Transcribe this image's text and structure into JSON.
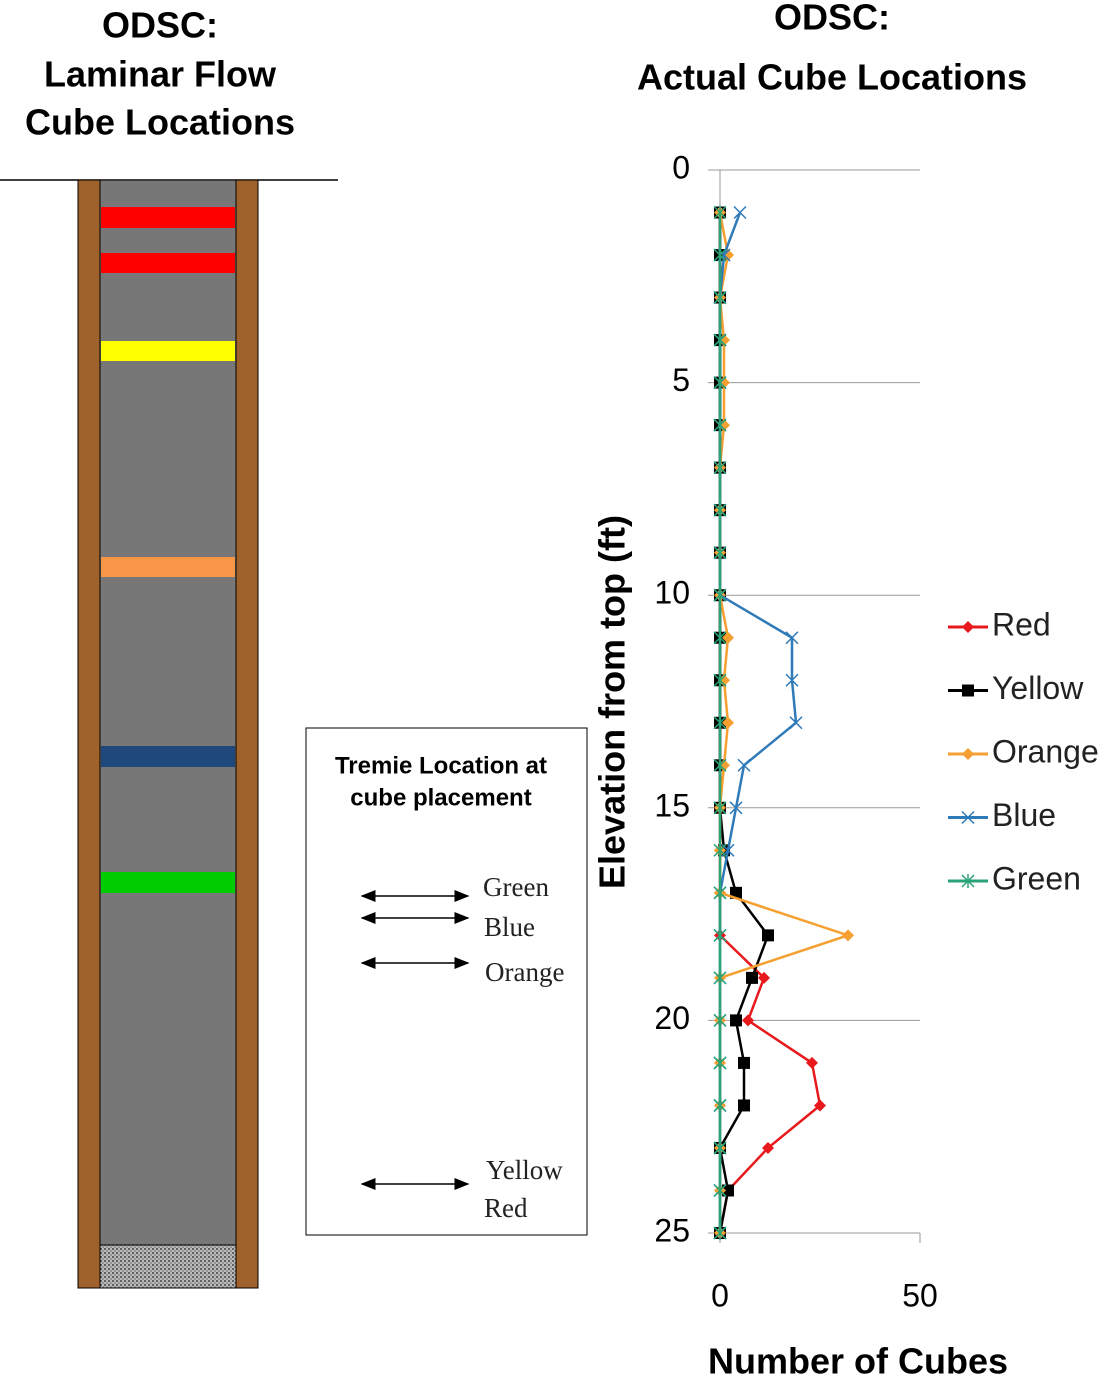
{
  "diagram": {
    "title": [
      "ODSC:",
      "Laminar Flow",
      "Cube Locations"
    ],
    "box_title": [
      "Tremie Location at",
      "cube placement"
    ],
    "labels": [
      "Green",
      "Blue",
      "Orange",
      "Yellow",
      "Red"
    ]
  },
  "chart_data": {
    "type": "line",
    "orientation": "vertical",
    "title": [
      "ODSC:",
      "Actual Cube Locations"
    ],
    "x_label": "Number of Cubes",
    "y_label": "Elevation from top (ft)",
    "y": [
      1,
      2,
      3,
      4,
      5,
      6,
      7,
      8,
      9,
      10,
      11,
      12,
      13,
      14,
      15,
      16,
      17,
      18,
      19,
      20,
      21,
      22,
      23,
      24,
      25
    ],
    "series": [
      {
        "name": "Red",
        "color": "#e8191c",
        "marker": "diamond",
        "values": [
          0,
          0,
          0,
          0,
          0,
          0,
          0,
          0,
          0,
          0,
          0,
          0,
          0,
          0,
          0,
          0,
          0,
          0,
          11,
          7,
          23,
          25,
          12,
          2,
          0
        ]
      },
      {
        "name": "Yellow",
        "color": "#000000",
        "marker": "square",
        "values": [
          0,
          0,
          0,
          0,
          0,
          0,
          0,
          0,
          0,
          0,
          0,
          0,
          0,
          0,
          0,
          1,
          4,
          12,
          8,
          4,
          6,
          6,
          0,
          2,
          0
        ]
      },
      {
        "name": "Orange",
        "color": "#f5a030",
        "marker": "diamond",
        "values": [
          0,
          2,
          0,
          1,
          1,
          1,
          0,
          0,
          0,
          0,
          2,
          1,
          2,
          1,
          0,
          0,
          0,
          32,
          0,
          0,
          0,
          0,
          0,
          0,
          0
        ]
      },
      {
        "name": "Blue",
        "color": "#2f7ab8",
        "marker": "x",
        "values": [
          5,
          1,
          0,
          0,
          0,
          0,
          0,
          0,
          0,
          0,
          18,
          18,
          19,
          6,
          4,
          2,
          0,
          0,
          0,
          0,
          0,
          0,
          0,
          0,
          0
        ]
      },
      {
        "name": "Green",
        "color": "#2aa477",
        "marker": "asterisk",
        "values": [
          0,
          0,
          0,
          0,
          0,
          0,
          0,
          0,
          0,
          0,
          0,
          0,
          0,
          0,
          0,
          0,
          0,
          0,
          0,
          0,
          0,
          0,
          0,
          0,
          0
        ]
      }
    ],
    "xlim": [
      0,
      50
    ],
    "xticks": [
      0,
      50
    ],
    "ylim": [
      0,
      25
    ],
    "yticks": [
      0,
      5,
      10,
      15,
      20,
      25
    ],
    "y_reversed": true,
    "grid": true,
    "legend": "right"
  }
}
